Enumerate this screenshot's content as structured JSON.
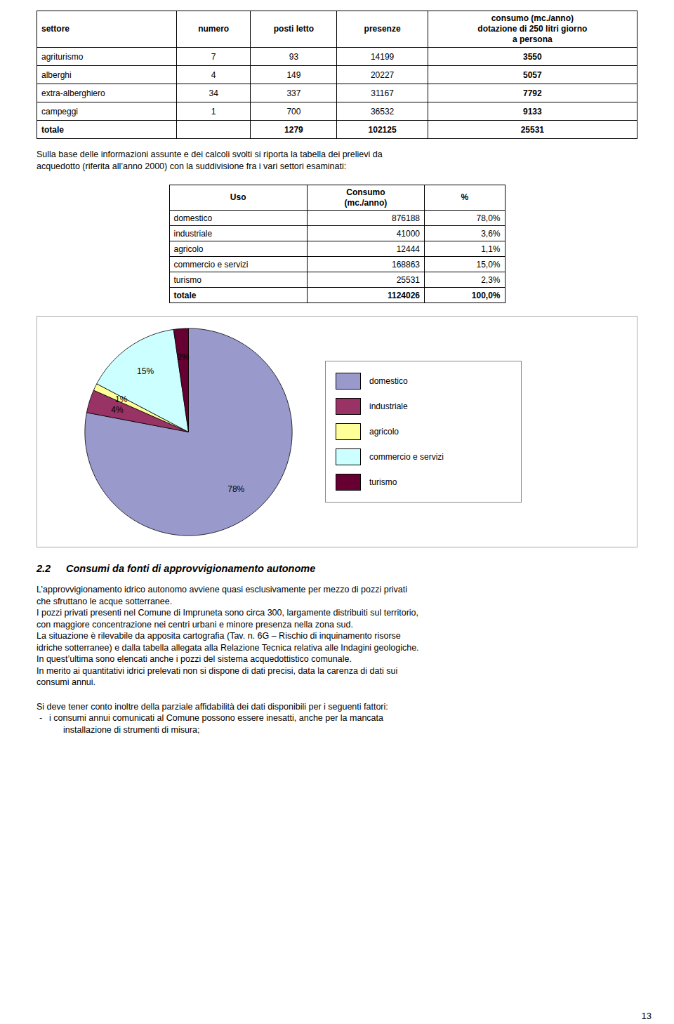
{
  "chart_data": [
    {
      "type": "table",
      "xlabel": "settore",
      "categories": [
        "agriturismo",
        "alberghi",
        "extra-alberghiero",
        "campeggi",
        "totale"
      ],
      "series": [
        {
          "name": "numero",
          "values": [
            7,
            4,
            34,
            1,
            null
          ]
        },
        {
          "name": "posti letto",
          "values": [
            93,
            149,
            337,
            700,
            1279
          ]
        },
        {
          "name": "presenze",
          "values": [
            14199,
            20227,
            31167,
            36532,
            102125
          ]
        },
        {
          "name": "consumo (mc./anno)\ndotazione di 250 litri giorno\na persona",
          "values": [
            3550,
            5057,
            7792,
            9133,
            25531
          ]
        }
      ]
    },
    {
      "type": "text",
      "annotations": [
        "Sulla base delle informazioni assunte e dei calcoli svolti si riporta la tabella dei prelievi da",
        "acquedotto (riferita all’anno 2000) con la suddivisione fra i vari settori esaminati:"
      ]
    },
    {
      "type": "table",
      "xlabel": "Uso",
      "categories": [
        "domestico",
        "industriale",
        "agricolo",
        "commercio e servizi",
        "turismo",
        "totale"
      ],
      "series": [
        {
          "name": "Consumo\n(mc./anno)",
          "values": [
            876188,
            41000,
            12444,
            168863,
            25531,
            1124026
          ]
        },
        {
          "name": "%",
          "values": [
            78.0,
            3.6,
            1.1,
            15.0,
            2.3,
            100.0
          ],
          "value_labels": [
            "78,0%",
            "3,6%",
            "1,1%",
            "15,0%",
            "2,3%",
            "100,0%"
          ]
        }
      ]
    },
    {
      "type": "pie",
      "categories": [
        "domestico",
        "industriale",
        "agricolo",
        "commercio e servizi",
        "turismo"
      ],
      "values": [
        78.0,
        3.6,
        1.1,
        15.0,
        2.3
      ],
      "value_labels": [
        "78%",
        "4%",
        "1%",
        "15%",
        "2%"
      ],
      "colors": [
        "#9999cc",
        "#993366",
        "#ffff99",
        "#ccffff",
        "#660033"
      ],
      "data_labels": true,
      "legend": "right"
    },
    {
      "type": "heading",
      "annotations": [
        "2.2",
        "Consumi da fonti di approvvigionamento autonome"
      ]
    },
    {
      "type": "text",
      "annotations": [
        "L’approvvigionamento idrico autonomo avviene quasi esclusivamente per mezzo di pozzi privati",
        "che sfruttano le acque sotterranee.",
        "I pozzi privati presenti nel Comune di Impruneta sono circa 300, largamente distribuiti sul territorio,",
        "con maggiore concentrazione nei centri urbani e minore presenza nella zona sud.",
        "La situazione è rilevabile da apposita cartografia (Tav. n. 6G – Rischio di inquinamento risorse",
        "idriche sotterranee) e dalla tabella allegata alla Relazione Tecnica relativa alle Indagini geologiche.",
        "In quest’ultima sono elencati anche i pozzi del sistema acquedottistico comunale.",
        "In merito ai quantitativi idrici prelevati non si dispone di dati precisi, data la carenza di dati sui",
        "consumi annui."
      ]
    },
    {
      "type": "list",
      "title": "Si deve tener conto inoltre della parziale affidabilità dei dati disponibili per i seguenti fattori:",
      "marker": "-",
      "annotations": [
        "i consumi annui comunicati al Comune possono essere inesatti, anche per la mancata",
        "installazione di strumenti di misura;"
      ]
    },
    {
      "type": "footer",
      "annotations": [
        "13"
      ]
    }
  ]
}
